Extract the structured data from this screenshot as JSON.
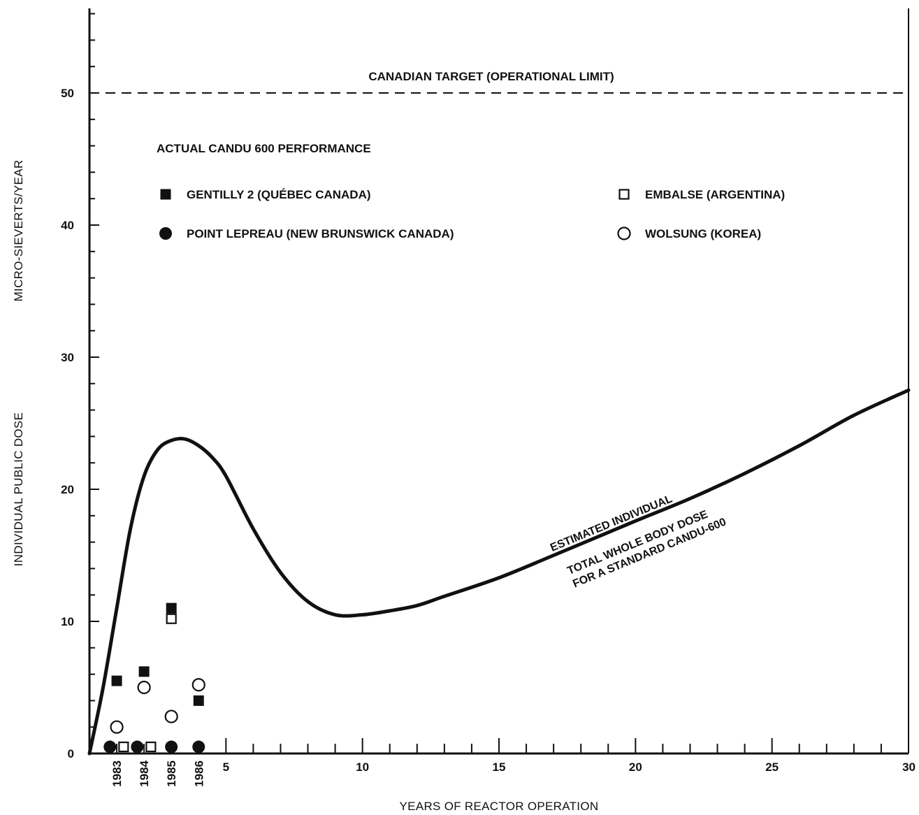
{
  "chart_data": {
    "type": "line",
    "title": "",
    "xlabel": "YEARS OF REACTOR OPERATION",
    "ylabel": [
      "INDIVIDUAL PUBLIC DOSE",
      "MICRO-SIEVERTS/YEAR"
    ],
    "xlim": [
      0,
      30
    ],
    "ylim": [
      0,
      56
    ],
    "x_ticks": [
      5,
      10,
      15,
      20,
      25,
      30
    ],
    "y_ticks": [
      0,
      10,
      20,
      30,
      40,
      50
    ],
    "year_tick_labels": [
      {
        "x": 1,
        "label": "1983"
      },
      {
        "x": 2,
        "label": "1984"
      },
      {
        "x": 3,
        "label": "1985"
      },
      {
        "x": 4,
        "label": "1986"
      }
    ],
    "grid": false,
    "reference_line": {
      "y": 50,
      "label": "CANADIAN TARGET (OPERATIONAL LIMIT)",
      "style": "dashed"
    },
    "curve": {
      "label_line1": "ESTIMATED INDIVIDUAL",
      "label_line2": "TOTAL WHOLE BODY DOSE",
      "label_line3": "FOR A STANDARD CANDU-600",
      "points": [
        [
          0,
          0
        ],
        [
          0.5,
          5
        ],
        [
          1,
          11
        ],
        [
          1.5,
          17
        ],
        [
          2,
          21
        ],
        [
          2.5,
          23
        ],
        [
          3,
          23.7
        ],
        [
          3.5,
          23.8
        ],
        [
          4,
          23.3
        ],
        [
          4.5,
          22.4
        ],
        [
          5,
          21
        ],
        [
          6,
          17
        ],
        [
          7,
          13.7
        ],
        [
          8,
          11.5
        ],
        [
          9,
          10.5
        ],
        [
          10,
          10.5
        ],
        [
          11,
          10.8
        ],
        [
          12,
          11.2
        ],
        [
          13,
          11.9
        ],
        [
          15,
          13.3
        ],
        [
          17,
          15
        ],
        [
          20,
          17.6
        ],
        [
          22,
          19.3
        ],
        [
          24,
          21.2
        ],
        [
          26,
          23.3
        ],
        [
          28,
          25.6
        ],
        [
          30,
          27.5
        ]
      ]
    },
    "legend_title": "ACTUAL CANDU 600 PERFORMANCE",
    "series": [
      {
        "name": "GENTILLY 2 (QUÉBEC CANADA)",
        "marker": "filled-square",
        "points": [
          [
            1,
            5.5
          ],
          [
            2,
            6.2
          ],
          [
            3,
            11
          ],
          [
            4,
            4
          ]
        ]
      },
      {
        "name": "POINT LEPREAU (NEW BRUNSWICK CANADA)",
        "marker": "filled-circle",
        "points": [
          [
            0.75,
            0.5
          ],
          [
            1.75,
            0.5
          ],
          [
            3,
            0.5
          ],
          [
            4,
            0.5
          ]
        ]
      },
      {
        "name": "EMBALSE (ARGENTINA)",
        "marker": "open-square",
        "points": [
          [
            1.25,
            0.5
          ],
          [
            2.25,
            0.5
          ],
          [
            3,
            10.2
          ]
        ]
      },
      {
        "name": "WOLSUNG (KOREA)",
        "marker": "open-circle",
        "points": [
          [
            1,
            2
          ],
          [
            2,
            5
          ],
          [
            3,
            2.8
          ],
          [
            4,
            5.2
          ]
        ]
      }
    ]
  }
}
